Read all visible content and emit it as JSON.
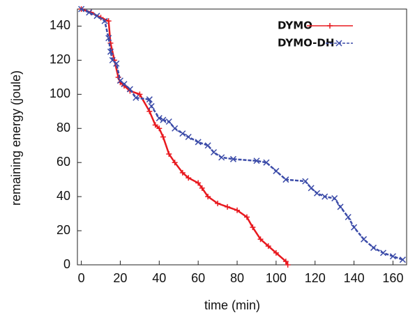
{
  "chart_data": {
    "type": "line",
    "xlabel": "time (min)",
    "ylabel": "remaining energy (joule)",
    "xlim": [
      -2,
      167
    ],
    "ylim": [
      0,
      150
    ],
    "xticks": [
      0,
      20,
      40,
      60,
      80,
      100,
      120,
      140,
      160
    ],
    "yticks": [
      0,
      20,
      40,
      60,
      80,
      100,
      120,
      140
    ],
    "legend": "top-right",
    "series": [
      {
        "name": "DYMO",
        "color": "#e8191f",
        "marker": "plus",
        "x": [
          0,
          5,
          10,
          14,
          15,
          17,
          19,
          20,
          22,
          25,
          30,
          35,
          38,
          40,
          42,
          45,
          48,
          52,
          55,
          60,
          62,
          65,
          70,
          75,
          80,
          85,
          88,
          92,
          96,
          100,
          105,
          106
        ],
        "values": [
          150,
          148,
          145,
          143,
          130,
          120,
          110,
          107,
          105,
          102,
          100,
          90,
          82,
          80,
          75,
          65,
          60,
          54,
          51,
          48,
          45,
          40,
          36,
          34,
          32,
          28,
          22,
          15,
          11,
          7,
          2,
          0
        ]
      },
      {
        "name": "DYMO-DH",
        "color": "#3b4ba8",
        "marker": "cross",
        "x": [
          0,
          4,
          8,
          12,
          14,
          15,
          16,
          18,
          20,
          22,
          25,
          28,
          35,
          36,
          40,
          42,
          45,
          48,
          52,
          55,
          60,
          65,
          68,
          72,
          78,
          90,
          95,
          100,
          105,
          115,
          118,
          121,
          125,
          130,
          133,
          137,
          140,
          145,
          150,
          155,
          160,
          165
        ],
        "values": [
          150,
          148,
          146,
          143,
          133,
          125,
          120,
          118,
          108,
          106,
          103,
          98,
          97,
          93,
          86,
          85,
          84,
          80,
          77,
          75,
          72,
          70,
          66,
          63,
          62,
          61,
          60,
          55,
          50,
          49,
          45,
          42,
          40,
          39,
          34,
          28,
          22,
          15,
          10,
          7,
          5,
          3
        ]
      }
    ]
  }
}
